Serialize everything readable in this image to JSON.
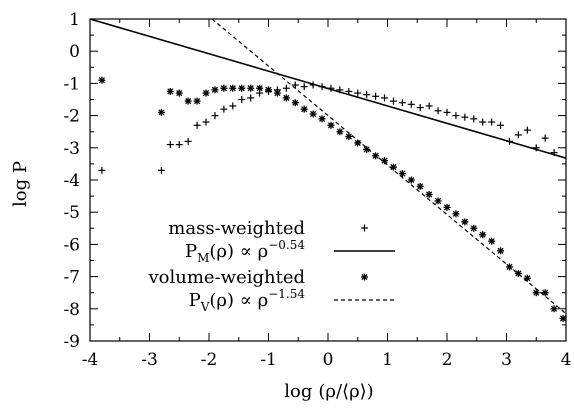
{
  "chart_data": {
    "type": "scatter",
    "xlabel_prefix": "log",
    "xlabel_expr": "(ρ/⟨ρ⟩)",
    "ylabel": "log P",
    "xlim": [
      -4,
      4
    ],
    "ylim": [
      -9,
      1
    ],
    "xticks": [
      -4,
      -3,
      -2,
      -1,
      0,
      1,
      2,
      3,
      4
    ],
    "yticks": [
      1,
      0,
      -1,
      -2,
      -3,
      -4,
      -5,
      -6,
      -7,
      -8,
      -9
    ],
    "grid": false,
    "legend_position": "lower-left inside plot",
    "legend": [
      {
        "text": "mass-weighted",
        "marker": "+"
      },
      {
        "text_main": "P",
        "text_sub": "M",
        "text_mid": "(ρ) ∝ ρ",
        "text_sup": "−0.54",
        "line": "solid"
      },
      {
        "text": "volume-weighted",
        "marker": "✱"
      },
      {
        "text_main": "P",
        "text_sub": "V",
        "text_mid": "(ρ) ∝ ρ",
        "text_sup": "−1.54",
        "line": "dashed"
      }
    ],
    "series": [
      {
        "kind": "points",
        "marker": "+",
        "legend_index": 0,
        "points": [
          [
            -3.8,
            -3.7
          ],
          [
            -2.8,
            -3.7
          ],
          [
            -2.65,
            -2.9
          ],
          [
            -2.5,
            -2.9
          ],
          [
            -2.35,
            -2.8
          ],
          [
            -2.2,
            -2.3
          ],
          [
            -2.05,
            -2.2
          ],
          [
            -1.9,
            -2.0
          ],
          [
            -1.75,
            -1.8
          ],
          [
            -1.6,
            -1.7
          ],
          [
            -1.45,
            -1.5
          ],
          [
            -1.3,
            -1.45
          ],
          [
            -1.15,
            -1.3
          ],
          [
            -1.0,
            -1.25
          ],
          [
            -0.85,
            -1.2
          ],
          [
            -0.7,
            -1.15
          ],
          [
            -0.55,
            -1.05
          ],
          [
            -0.4,
            -1.1
          ],
          [
            -0.25,
            -1.05
          ],
          [
            -0.1,
            -1.1
          ],
          [
            0.05,
            -1.15
          ],
          [
            0.2,
            -1.2
          ],
          [
            0.35,
            -1.25
          ],
          [
            0.5,
            -1.3
          ],
          [
            0.65,
            -1.35
          ],
          [
            0.8,
            -1.4
          ],
          [
            0.95,
            -1.45
          ],
          [
            1.1,
            -1.55
          ],
          [
            1.25,
            -1.6
          ],
          [
            1.4,
            -1.65
          ],
          [
            1.55,
            -1.75
          ],
          [
            1.7,
            -1.7
          ],
          [
            1.85,
            -1.85
          ],
          [
            2.0,
            -1.9
          ],
          [
            2.15,
            -2.0
          ],
          [
            2.3,
            -2.05
          ],
          [
            2.45,
            -2.1
          ],
          [
            2.6,
            -2.2
          ],
          [
            2.75,
            -2.2
          ],
          [
            2.9,
            -2.3
          ],
          [
            3.05,
            -2.8
          ],
          [
            3.2,
            -2.6
          ],
          [
            3.35,
            -2.45
          ],
          [
            3.5,
            -3.0
          ],
          [
            3.65,
            -2.7
          ],
          [
            3.8,
            -3.15
          ]
        ]
      },
      {
        "kind": "points",
        "marker": "✱",
        "legend_index": 2,
        "points": [
          [
            -3.8,
            -0.9
          ],
          [
            -2.8,
            -1.9
          ],
          [
            -2.65,
            -1.25
          ],
          [
            -2.5,
            -1.3
          ],
          [
            -2.35,
            -1.55
          ],
          [
            -2.2,
            -1.55
          ],
          [
            -2.05,
            -1.3
          ],
          [
            -1.9,
            -1.2
          ],
          [
            -1.75,
            -1.15
          ],
          [
            -1.6,
            -1.15
          ],
          [
            -1.45,
            -1.15
          ],
          [
            -1.3,
            -1.15
          ],
          [
            -1.15,
            -1.15
          ],
          [
            -1.0,
            -1.2
          ],
          [
            -0.85,
            -1.3
          ],
          [
            -0.7,
            -1.45
          ],
          [
            -0.55,
            -1.6
          ],
          [
            -0.4,
            -1.8
          ],
          [
            -0.25,
            -1.95
          ],
          [
            -0.1,
            -2.1
          ],
          [
            0.05,
            -2.3
          ],
          [
            0.2,
            -2.5
          ],
          [
            0.35,
            -2.65
          ],
          [
            0.5,
            -2.85
          ],
          [
            0.65,
            -3.05
          ],
          [
            0.8,
            -3.25
          ],
          [
            0.95,
            -3.4
          ],
          [
            1.1,
            -3.6
          ],
          [
            1.25,
            -3.8
          ],
          [
            1.4,
            -4.0
          ],
          [
            1.55,
            -4.2
          ],
          [
            1.7,
            -4.45
          ],
          [
            1.85,
            -4.65
          ],
          [
            2.0,
            -4.85
          ],
          [
            2.15,
            -5.05
          ],
          [
            2.3,
            -5.3
          ],
          [
            2.45,
            -5.5
          ],
          [
            2.6,
            -5.7
          ],
          [
            2.75,
            -5.9
          ],
          [
            2.9,
            -6.2
          ],
          [
            3.05,
            -6.7
          ],
          [
            3.2,
            -6.9
          ],
          [
            3.35,
            -7.05
          ],
          [
            3.5,
            -7.5
          ],
          [
            3.65,
            -7.5
          ],
          [
            3.8,
            -8.0
          ],
          [
            3.95,
            -8.3
          ]
        ]
      },
      {
        "kind": "line",
        "style": "solid",
        "legend_index": 1,
        "from": [
          -4,
          1.0
        ],
        "to": [
          4,
          -3.32
        ]
      },
      {
        "kind": "line",
        "style": "dashed",
        "legend_index": 3,
        "from": [
          -1.95,
          1.0
        ],
        "to": [
          4,
          -8.15
        ]
      }
    ]
  }
}
